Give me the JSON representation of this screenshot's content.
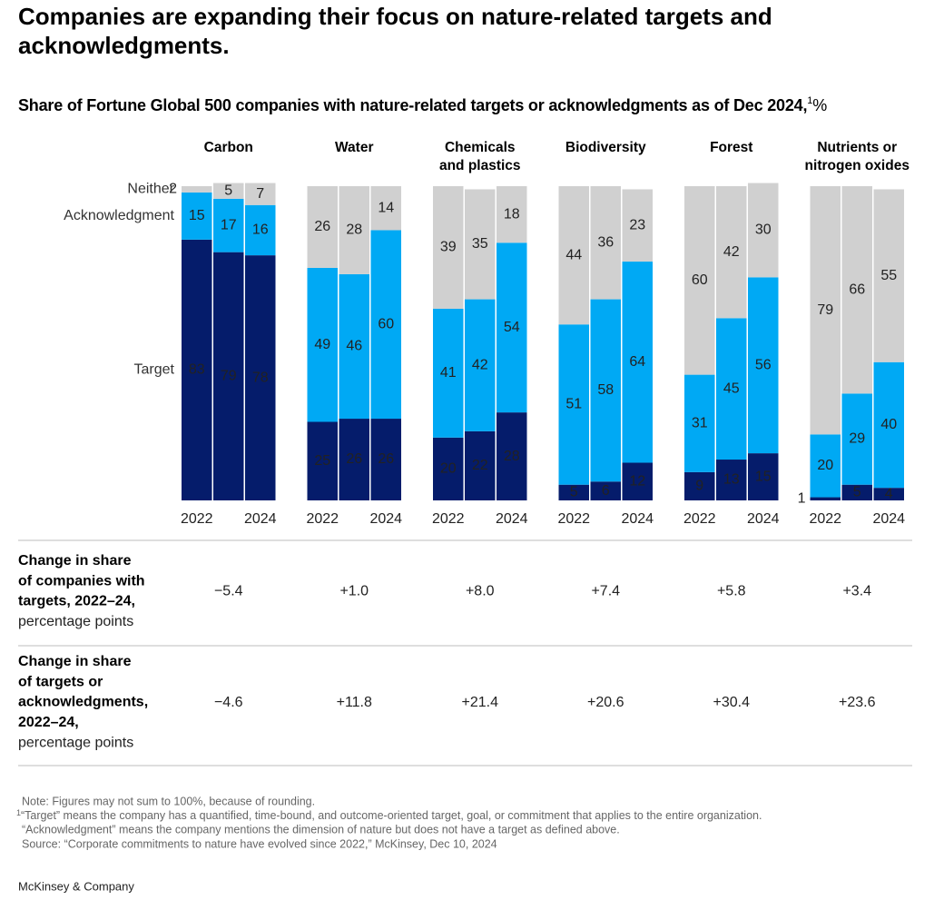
{
  "title": "Companies are expanding their focus on nature-related targets and\nacknowledgments.",
  "subtitle": "Share of Fortune Global 500 companies with nature-related targets or acknowledgments as of Dec 2024,",
  "subtitle_marker": "1",
  "subtitle_unit": "%",
  "chart_data": [
    {
      "type": "bar",
      "stacked": true,
      "title": "Carbon",
      "categories": [
        "2022",
        null,
        "2024"
      ],
      "ylim": [
        0,
        100
      ],
      "series": [
        {
          "name": "Target",
          "color": "#051c6b",
          "values": [
            83,
            79,
            78
          ]
        },
        {
          "name": "Acknowledgment",
          "color": "#00a9f4",
          "values": [
            15,
            17,
            16
          ]
        },
        {
          "name": "Neither",
          "color": "#d0d0d0",
          "values": [
            2,
            5,
            7
          ]
        }
      ]
    },
    {
      "type": "bar",
      "stacked": true,
      "title": "Water",
      "categories": [
        "2022",
        null,
        "2024"
      ],
      "ylim": [
        0,
        100
      ],
      "series": [
        {
          "color": "#051c6b",
          "values": [
            25,
            26,
            26
          ]
        },
        {
          "color": "#00a9f4",
          "values": [
            49,
            46,
            60
          ]
        },
        {
          "color": "#d0d0d0",
          "values": [
            26,
            28,
            14
          ]
        }
      ]
    },
    {
      "type": "bar",
      "stacked": true,
      "title": "Chemicals\nand plastics",
      "categories": [
        "2022",
        null,
        "2024"
      ],
      "ylim": [
        0,
        100
      ],
      "series": [
        {
          "color": "#051c6b",
          "values": [
            20,
            22,
            28
          ]
        },
        {
          "color": "#00a9f4",
          "values": [
            41,
            42,
            54
          ]
        },
        {
          "color": "#d0d0d0",
          "values": [
            39,
            35,
            18
          ]
        }
      ]
    },
    {
      "type": "bar",
      "stacked": true,
      "title": "Biodiversity",
      "categories": [
        "2022",
        null,
        "2024"
      ],
      "ylim": [
        0,
        100
      ],
      "series": [
        {
          "color": "#051c6b",
          "values": [
            5,
            6,
            12
          ]
        },
        {
          "color": "#00a9f4",
          "values": [
            51,
            58,
            64
          ]
        },
        {
          "color": "#d0d0d0",
          "values": [
            44,
            36,
            23
          ]
        }
      ]
    },
    {
      "type": "bar",
      "stacked": true,
      "title": "Forest",
      "categories": [
        "2022",
        null,
        "2024"
      ],
      "ylim": [
        0,
        100
      ],
      "series": [
        {
          "color": "#051c6b",
          "values": [
            9,
            13,
            15
          ]
        },
        {
          "color": "#00a9f4",
          "values": [
            31,
            45,
            56
          ]
        },
        {
          "color": "#d0d0d0",
          "values": [
            60,
            42,
            30
          ]
        }
      ]
    },
    {
      "type": "bar",
      "stacked": true,
      "title": "Nutrients or\nnitrogen oxides",
      "categories": [
        "2022",
        null,
        "2024"
      ],
      "ylim": [
        0,
        100
      ],
      "series": [
        {
          "color": "#051c6b",
          "values": [
            1,
            5,
            4
          ]
        },
        {
          "color": "#00a9f4",
          "values": [
            20,
            29,
            40
          ]
        },
        {
          "color": "#d0d0d0",
          "values": [
            79,
            66,
            55
          ]
        }
      ]
    }
  ],
  "table": {
    "rows": [
      {
        "label": "Change in share\nof companies with\ntargets, 2022–24,",
        "unit": "percentage points",
        "cells": [
          "−5.4",
          "+1.0",
          "+8.0",
          "+7.4",
          "+5.8",
          "+3.4"
        ]
      },
      {
        "label": "Change in share\nof targets or\nacknowledgments,\n2022–24,",
        "unit": "percentage points",
        "cells": [
          "−4.6",
          "+11.8",
          "+21.4",
          "+20.6",
          "+30.4",
          "+23.6"
        ]
      }
    ]
  },
  "notes": {
    "note": "Note: Figures may not sum to 100%, because of rounding.",
    "footnote_marker": "1",
    "footnotes": [
      "“Target” means the company has a quantified, time-bound, and outcome-oriented target, goal, or commitment that applies to the entire organization.",
      "“Acknowledgment” means the company mentions the dimension of nature but does not have a target as defined above."
    ],
    "source": "Source: “Corporate commitments to nature have evolved since 2022,” McKinsey, Dec 10, 2024"
  },
  "footer": "McKinsey & Company"
}
